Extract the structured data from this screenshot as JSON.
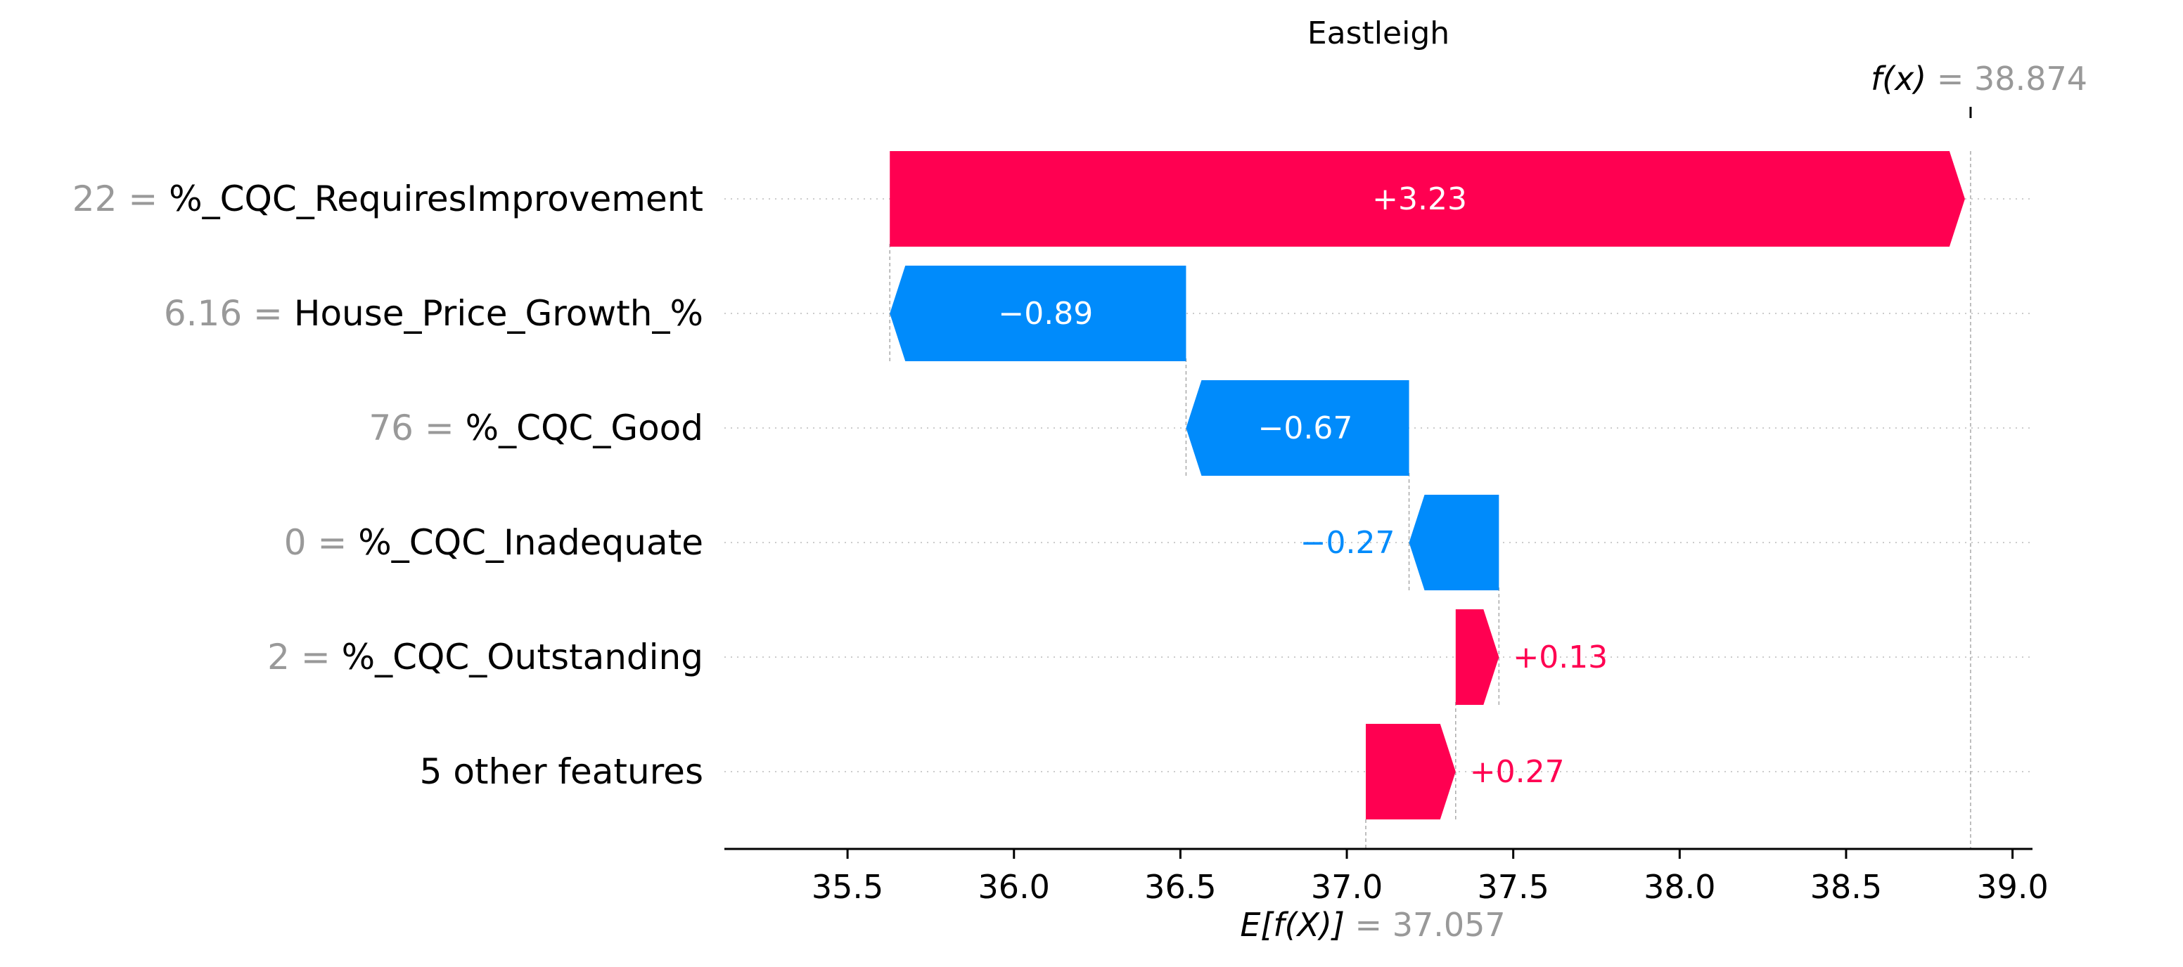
{
  "chart_data": {
    "type": "waterfall",
    "title": "Eastleigh",
    "base_value": 37.057,
    "base_value_label": "37.057",
    "final_value": 38.874,
    "final_value_label": "38.874",
    "xlim": [
      35.13,
      39.06
    ],
    "xticks": [
      35.5,
      36.0,
      36.5,
      37.0,
      37.5,
      38.0,
      38.5,
      39.0
    ],
    "xtick_labels": [
      "35.5",
      "36.0",
      "36.5",
      "37.0",
      "37.5",
      "38.0",
      "38.5",
      "39.0"
    ],
    "features": [
      {
        "value_text": "22",
        "feature": "%_CQC_RequiresImprovement",
        "shap": 3.23,
        "label": "+3.23",
        "sign": "positive",
        "label_inside": true
      },
      {
        "value_text": "6.16",
        "feature": "House_Price_Growth_%",
        "shap": -0.89,
        "label": "−0.89",
        "sign": "negative",
        "label_inside": true
      },
      {
        "value_text": "76",
        "feature": "%_CQC_Good",
        "shap": -0.67,
        "label": "−0.67",
        "sign": "negative",
        "label_inside": true
      },
      {
        "value_text": "0",
        "feature": "%_CQC_Inadequate",
        "shap": -0.27,
        "label": "−0.27",
        "sign": "negative",
        "label_inside": false
      },
      {
        "value_text": "2",
        "feature": "%_CQC_Outstanding",
        "shap": 0.13,
        "label": "+0.13",
        "sign": "positive",
        "label_inside": false
      },
      {
        "value_text": "",
        "feature": "5 other features",
        "shap": 0.27,
        "label": "+0.27",
        "sign": "positive",
        "label_inside": false
      }
    ],
    "colors": {
      "positive": "#ff0051",
      "negative": "#008bfb",
      "value_gray": "#999999",
      "text": "#000000",
      "grid": "#cccccc"
    },
    "annotations": {
      "fx_symbol": "f(x)",
      "fx_equals": "=",
      "efx_symbol": "E[f(X)]",
      "efx_equals": "="
    }
  }
}
